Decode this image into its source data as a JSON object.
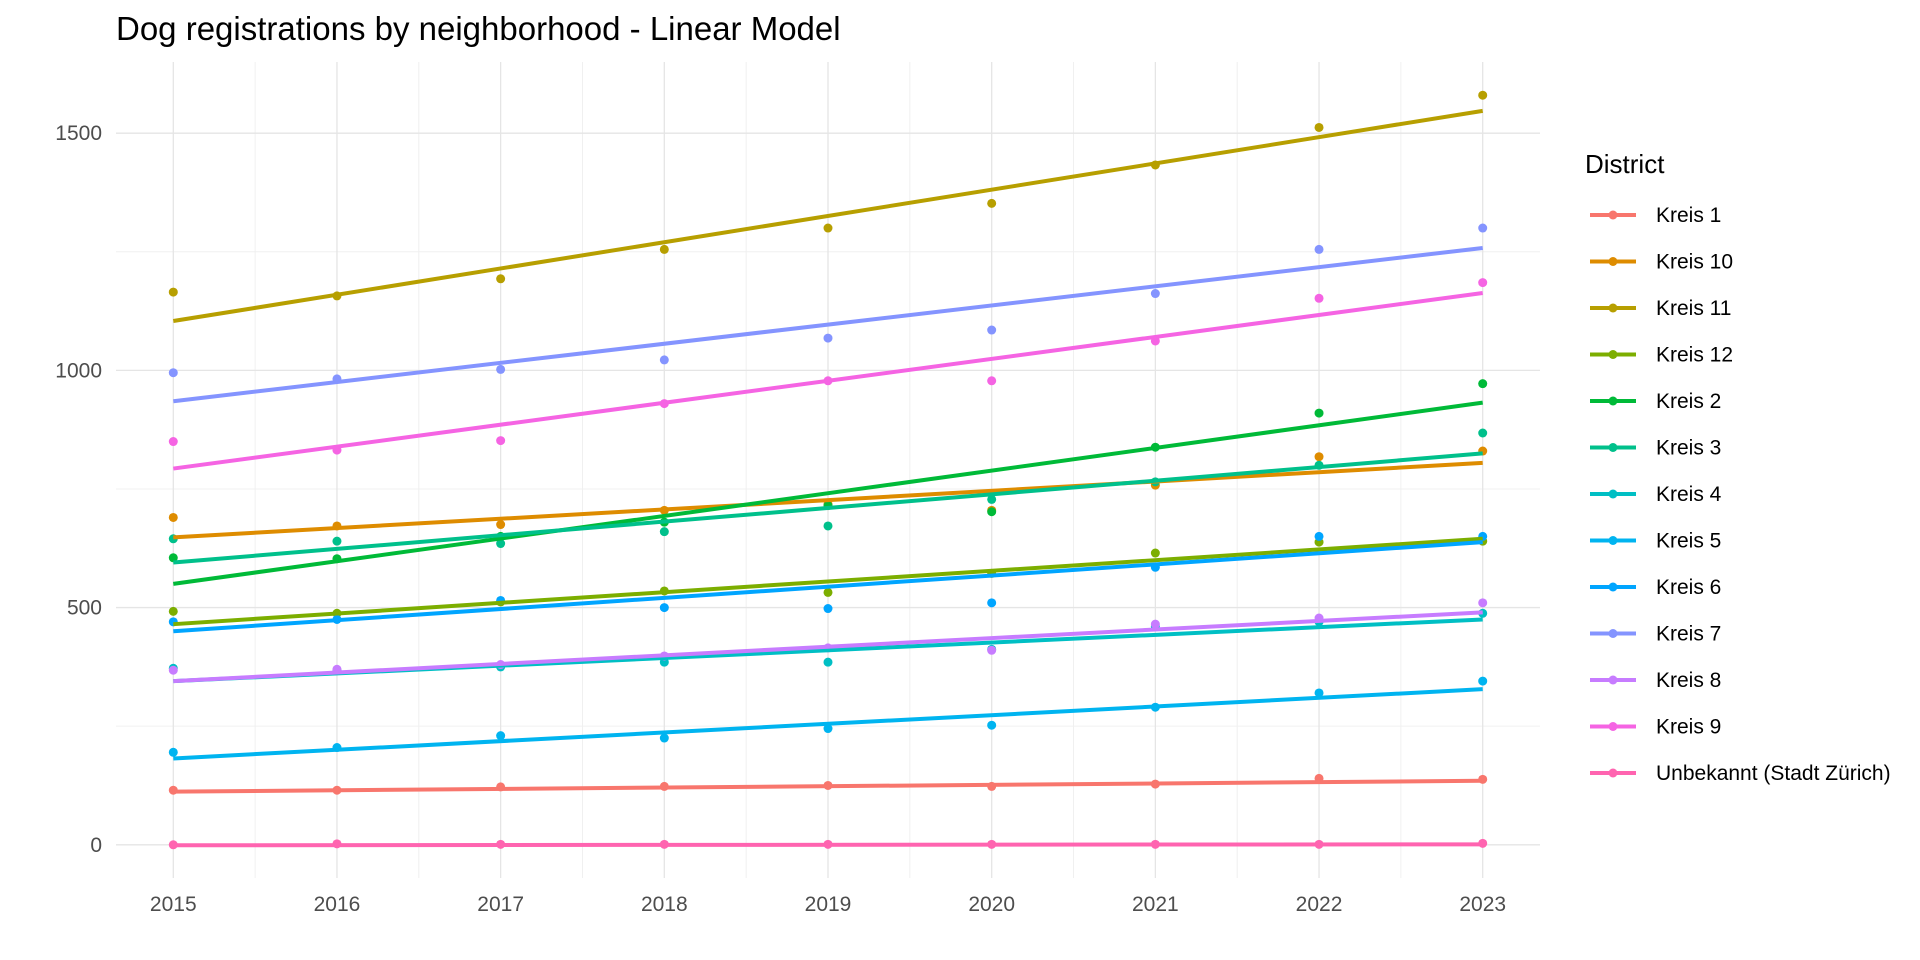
{
  "chart_data": {
    "type": "scatter",
    "title": "Dog registrations by neighborhood - Linear Model",
    "subtitle": "",
    "xlabel": "",
    "ylabel": "",
    "x": [
      2015,
      2016,
      2017,
      2018,
      2019,
      2020,
      2021,
      2022,
      2023
    ],
    "xlim": [
      2014.65,
      2023.35
    ],
    "ylim": [
      -70,
      1650
    ],
    "x_ticks": [
      2015,
      2016,
      2017,
      2018,
      2019,
      2020,
      2021,
      2022,
      2023
    ],
    "y_ticks": [
      0,
      500,
      1000,
      1500
    ],
    "x_tick_labels": [
      "2015",
      "2016",
      "2017",
      "2018",
      "2019",
      "2020",
      "2021",
      "2022",
      "2023"
    ],
    "y_tick_labels": [
      "0",
      "500",
      "1000",
      "1500"
    ],
    "grid": true,
    "legend": {
      "title": "District",
      "position": "right"
    },
    "series": [
      {
        "name": "Kreis 1",
        "color": "#F8766D",
        "values": [
          115,
          115,
          122,
          123,
          125,
          123,
          128,
          140,
          138
        ],
        "fit": [
          112,
          135
        ]
      },
      {
        "name": "Kreis 10",
        "color": "#DE8C00",
        "values": [
          690,
          672,
          675,
          705,
          718,
          705,
          758,
          818,
          830
        ],
        "fit": [
          648,
          805
        ]
      },
      {
        "name": "Kreis 11",
        "color": "#B79F00",
        "values": [
          1165,
          1157,
          1193,
          1255,
          1300,
          1352,
          1433,
          1512,
          1580
        ],
        "fit": [
          1104,
          1547
        ]
      },
      {
        "name": "Kreis 12",
        "color": "#7CAE00",
        "values": [
          492,
          488,
          512,
          535,
          532,
          572,
          615,
          638,
          640
        ],
        "fit": [
          465,
          645
        ]
      },
      {
        "name": "Kreis 2",
        "color": "#00BA38",
        "values": [
          605,
          603,
          650,
          680,
          715,
          702,
          838,
          910,
          972
        ],
        "fit": [
          550,
          932
        ]
      },
      {
        "name": "Kreis 3",
        "color": "#00C08B",
        "values": [
          645,
          640,
          635,
          660,
          672,
          728,
          765,
          800,
          868
        ],
        "fit": [
          595,
          825
        ]
      },
      {
        "name": "Kreis 4",
        "color": "#00BFC4",
        "values": [
          372,
          368,
          375,
          385,
          385,
          412,
          460,
          470,
          488
        ],
        "fit": [
          345,
          475
        ]
      },
      {
        "name": "Kreis 5",
        "color": "#00B4F0",
        "values": [
          195,
          205,
          230,
          225,
          245,
          252,
          290,
          320,
          345
        ],
        "fit": [
          182,
          328
        ]
      },
      {
        "name": "Kreis 6",
        "color": "#00A5FF",
        "values": [
          470,
          475,
          515,
          500,
          498,
          510,
          585,
          650,
          650
        ],
        "fit": [
          450,
          638
        ]
      },
      {
        "name": "Kreis 7",
        "color": "#8494FF",
        "values": [
          995,
          982,
          1002,
          1022,
          1068,
          1085,
          1162,
          1255,
          1300
        ],
        "fit": [
          935,
          1258
        ]
      },
      {
        "name": "Kreis 8",
        "color": "#C77CFF",
        "values": [
          368,
          370,
          380,
          398,
          415,
          410,
          465,
          478,
          510
        ],
        "fit": [
          345,
          490
        ]
      },
      {
        "name": "Kreis 9",
        "color": "#F564E3",
        "values": [
          850,
          832,
          852,
          930,
          978,
          978,
          1062,
          1152,
          1185
        ],
        "fit": [
          793,
          1163
        ]
      },
      {
        "name": "Unbekannt (Stadt Zürich)",
        "color": "#FF64B0",
        "values": [
          0,
          2,
          1,
          1,
          1,
          1,
          1,
          1,
          3
        ],
        "fit": [
          -1,
          1
        ]
      }
    ]
  }
}
